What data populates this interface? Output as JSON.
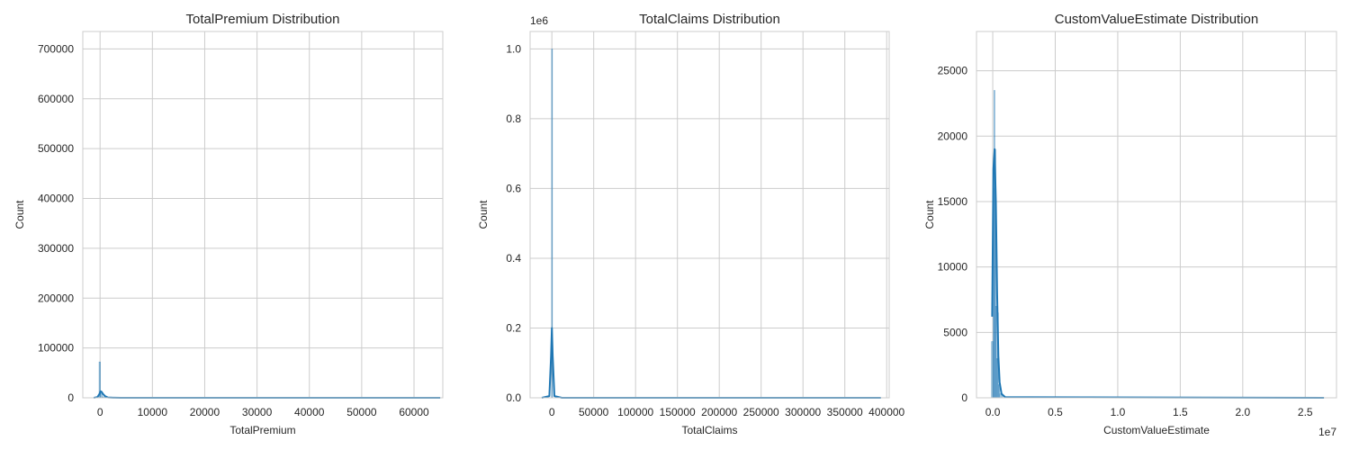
{
  "chart_data": [
    {
      "type": "histogram",
      "title": "TotalPremium Distribution",
      "xlabel": "TotalPremium",
      "ylabel": "Count",
      "xlim": [
        -3300,
        65500
      ],
      "ylim": [
        0,
        735000
      ],
      "xticks": [
        0,
        10000,
        20000,
        30000,
        40000,
        50000,
        60000
      ],
      "xtick_labels": [
        "0",
        "10000",
        "20000",
        "30000",
        "40000",
        "50000",
        "60000"
      ],
      "yticks": [
        0,
        100000,
        200000,
        300000,
        400000,
        500000,
        600000,
        700000
      ],
      "ytick_labels": [
        "0",
        "100000",
        "200000",
        "300000",
        "400000",
        "500000",
        "600000",
        "700000"
      ],
      "exponent_label": "",
      "bars": [
        {
          "x0": -200,
          "x1": 80,
          "y": 72000
        },
        {
          "x0": 80,
          "x1": 400,
          "y": 9000
        },
        {
          "x0": 400,
          "x1": 1200,
          "y": 2000
        }
      ],
      "kde": {
        "x": [
          -1200,
          -500,
          -100,
          100,
          300,
          600,
          1000,
          1500,
          2500,
          4000,
          65000
        ],
        "y": [
          0,
          1500,
          8000,
          13000,
          12000,
          7000,
          3000,
          800,
          200,
          50,
          0
        ]
      },
      "grid": true,
      "color": "#1f77b4"
    },
    {
      "type": "histogram",
      "title": "TotalClaims Distribution",
      "xlabel": "TotalClaims",
      "ylabel": "Count",
      "xlim": [
        -26000,
        403000
      ],
      "ylim": [
        0,
        1.05
      ],
      "xticks": [
        0,
        50000,
        100000,
        150000,
        200000,
        250000,
        300000,
        350000,
        400000
      ],
      "xtick_labels": [
        "0",
        "50000",
        "100000",
        "150000",
        "200000",
        "250000",
        "300000",
        "350000",
        "400000"
      ],
      "yticks": [
        0.0,
        0.2,
        0.4,
        0.6,
        0.8,
        1.0
      ],
      "ytick_labels": [
        "0.0",
        "0.2",
        "0.4",
        "0.6",
        "0.8",
        "1.0"
      ],
      "exponent_label": "1e6",
      "bars": [
        {
          "x0": -300,
          "x1": 300,
          "y": 1.0
        }
      ],
      "kde": {
        "x": [
          -12000,
          -3000,
          -1000,
          0,
          1000,
          3000,
          12000,
          393000
        ],
        "y": [
          0.0,
          0.005,
          0.12,
          0.2,
          0.12,
          0.005,
          0.0,
          0.0
        ]
      },
      "grid": true,
      "color": "#1f77b4"
    },
    {
      "type": "histogram",
      "title": "CustomValueEstimate Distribution",
      "xlabel": "CustomValueEstimate",
      "ylabel": "Count",
      "xlim": [
        -1.3,
        27.5
      ],
      "ylim": [
        0,
        28000
      ],
      "xticks": [
        0,
        5,
        10,
        15,
        20,
        25
      ],
      "xtick_labels": [
        "0.0",
        "0.5",
        "1.0",
        "1.5",
        "2.0",
        "2.5"
      ],
      "yticks": [
        0,
        5000,
        10000,
        15000,
        20000,
        25000
      ],
      "ytick_labels": [
        "0",
        "5000",
        "10000",
        "15000",
        "20000",
        "25000"
      ],
      "exponent_label": "1e7",
      "bars": [
        {
          "x0": -0.1,
          "x1": 0.03,
          "y": 4300
        },
        {
          "x0": 0.03,
          "x1": 0.1,
          "y": 16000
        },
        {
          "x0": 0.1,
          "x1": 0.17,
          "y": 23500
        },
        {
          "x0": 0.17,
          "x1": 0.24,
          "y": 19000
        },
        {
          "x0": 0.24,
          "x1": 0.31,
          "y": 7000
        },
        {
          "x0": 0.31,
          "x1": 0.38,
          "y": 3000
        },
        {
          "x0": 0.38,
          "x1": 0.45,
          "y": 6500
        },
        {
          "x0": 0.45,
          "x1": 0.55,
          "y": 1000
        },
        {
          "x0": 0.55,
          "x1": 0.8,
          "y": 300
        }
      ],
      "kde": {
        "x": [
          -0.05,
          0.05,
          0.15,
          0.25,
          0.35,
          0.45,
          0.55,
          0.7,
          1.0,
          26.5
        ],
        "y": [
          6200,
          17500,
          19000,
          15000,
          8000,
          3200,
          1200,
          300,
          50,
          0
        ]
      },
      "grid": true,
      "color": "#1f77b4"
    }
  ]
}
